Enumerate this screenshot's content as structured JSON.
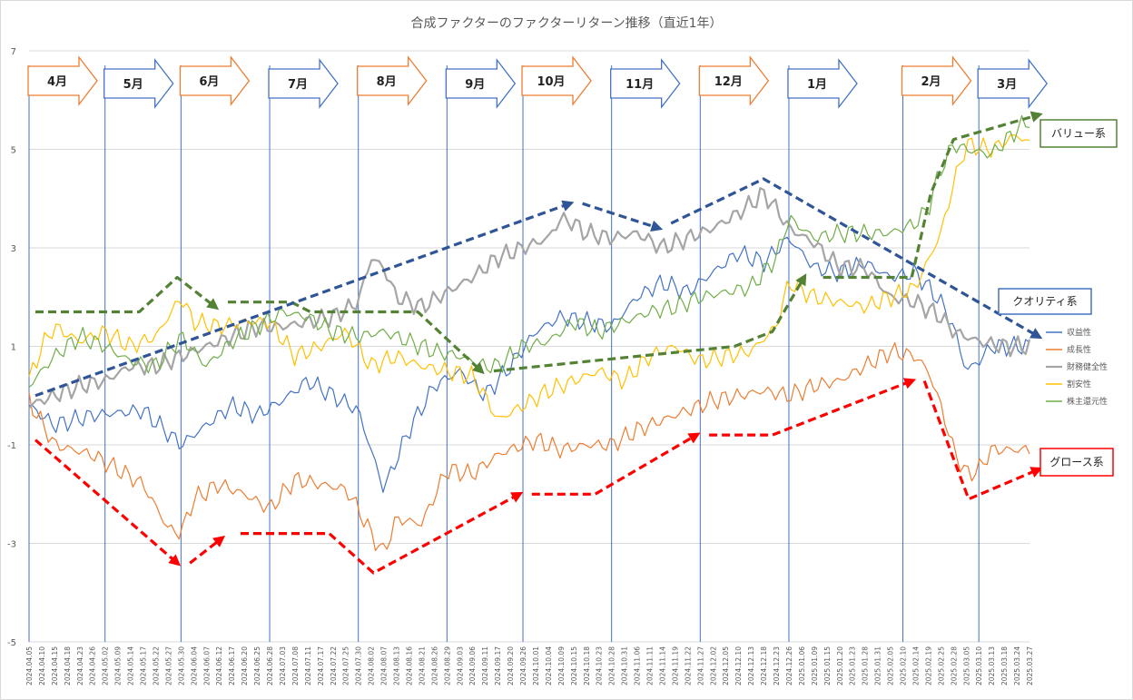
{
  "chart_data": {
    "type": "line",
    "title": "合成ファクターのファクターリターン推移（直近1年）",
    "ylim": [
      -5,
      7
    ],
    "yticks": [
      -5,
      -3,
      -1,
      1,
      3,
      5,
      7
    ],
    "xlabel": "",
    "ylabel": "",
    "grid": true,
    "legend_position": "right",
    "x_tick_labels": [
      "2024.04.05",
      "2024.04.10",
      "2024.04.15",
      "2024.04.18",
      "2024.04.23",
      "2024.04.26",
      "2024.05.02",
      "2024.05.09",
      "2024.05.14",
      "2024.05.17",
      "2024.05.22",
      "2024.05.27",
      "2024.05.30",
      "2024.06.04",
      "2024.06.07",
      "2024.06.12",
      "2024.06.17",
      "2024.06.20",
      "2024.06.25",
      "2024.06.28",
      "2024.07.03",
      "2024.07.08",
      "2024.07.11",
      "2024.07.17",
      "2024.07.22",
      "2024.07.25",
      "2024.07.30",
      "2024.08.02",
      "2024.08.07",
      "2024.08.13",
      "2024.08.16",
      "2024.08.21",
      "2024.08.26",
      "2024.08.29",
      "2024.09.03",
      "2024.09.06",
      "2024.09.11",
      "2024.09.17",
      "2024.09.20",
      "2024.09.26",
      "2024.10.01",
      "2024.10.04",
      "2024.10.09",
      "2024.10.15",
      "2024.10.18",
      "2024.10.23",
      "2024.10.28",
      "2024.10.31",
      "2024.11.06",
      "2024.11.11",
      "2024.11.14",
      "2024.11.19",
      "2024.11.22",
      "2024.11.27",
      "2024.12.02",
      "2024.12.05",
      "2024.12.10",
      "2024.12.13",
      "2024.12.18",
      "2024.12.23",
      "2024.12.26",
      "2025.01.06",
      "2025.01.09",
      "2025.01.15",
      "2025.01.20",
      "2025.01.23",
      "2025.01.28",
      "2025.01.31",
      "2025.02.05",
      "2025.02.10",
      "2025.02.14",
      "2025.02.19",
      "2025.02.25",
      "2025.02.28",
      "2025.03.05",
      "2025.03.10",
      "2025.03.13",
      "2025.03.18",
      "2025.03.24",
      "2025.03.27"
    ],
    "months": [
      "4月",
      "5月",
      "6月",
      "7月",
      "8月",
      "9月",
      "10月",
      "11月",
      "12月",
      "1月",
      "2月",
      "3月"
    ],
    "series": [
      {
        "name": "収益性",
        "color": "#4472c4",
        "width": 1.2,
        "key": [
          [
            0,
            -0.2
          ],
          [
            2,
            -0.6
          ],
          [
            5,
            -0.4
          ],
          [
            9,
            -0.3
          ],
          [
            12,
            -1.0
          ],
          [
            14,
            -0.6
          ],
          [
            16,
            -0.2
          ],
          [
            18,
            -0.4
          ],
          [
            20,
            -0.1
          ],
          [
            22,
            0.3
          ],
          [
            24,
            0.0
          ],
          [
            26,
            -0.3
          ],
          [
            28,
            -1.9
          ],
          [
            30,
            -0.7
          ],
          [
            32,
            0.2
          ],
          [
            34,
            0.5
          ],
          [
            36,
            0.0
          ],
          [
            38,
            0.6
          ],
          [
            40,
            1.3
          ],
          [
            42,
            1.6
          ],
          [
            44,
            1.5
          ],
          [
            46,
            1.4
          ],
          [
            48,
            2.0
          ],
          [
            50,
            2.3
          ],
          [
            52,
            2.1
          ],
          [
            54,
            2.5
          ],
          [
            56,
            2.9
          ],
          [
            58,
            2.7
          ],
          [
            60,
            3.2
          ],
          [
            62,
            2.6
          ],
          [
            64,
            2.5
          ],
          [
            66,
            2.7
          ],
          [
            68,
            2.4
          ],
          [
            70,
            2.5
          ],
          [
            72,
            1.9
          ],
          [
            73,
            1.4
          ],
          [
            74,
            0.5
          ],
          [
            75,
            0.7
          ],
          [
            76,
            1.0
          ],
          [
            78,
            1.0
          ],
          [
            79,
            1.0
          ]
        ]
      },
      {
        "name": "成長性",
        "color": "#ed7d31",
        "width": 1.2,
        "key": [
          [
            0,
            -0.1
          ],
          [
            2,
            -1.0
          ],
          [
            5,
            -1.2
          ],
          [
            9,
            -1.8
          ],
          [
            11,
            -2.7
          ],
          [
            12,
            -2.8
          ],
          [
            13,
            -2.1
          ],
          [
            15,
            -1.8
          ],
          [
            17,
            -2.0
          ],
          [
            19,
            -2.3
          ],
          [
            21,
            -1.7
          ],
          [
            23,
            -1.8
          ],
          [
            25,
            -1.9
          ],
          [
            26,
            -2.3
          ],
          [
            27,
            -2.8
          ],
          [
            28,
            -3.2
          ],
          [
            29,
            -2.5
          ],
          [
            31,
            -2.6
          ],
          [
            33,
            -1.5
          ],
          [
            35,
            -1.6
          ],
          [
            37,
            -1.2
          ],
          [
            40,
            -0.9
          ],
          [
            42,
            -1.1
          ],
          [
            44,
            -1.0
          ],
          [
            46,
            -1.0
          ],
          [
            48,
            -0.7
          ],
          [
            50,
            -0.5
          ],
          [
            52,
            -0.3
          ],
          [
            54,
            -0.1
          ],
          [
            56,
            0.0
          ],
          [
            58,
            0.1
          ],
          [
            60,
            0.0
          ],
          [
            62,
            0.2
          ],
          [
            64,
            0.3
          ],
          [
            66,
            0.6
          ],
          [
            68,
            0.9
          ],
          [
            70,
            0.8
          ],
          [
            71,
            0.5
          ],
          [
            72,
            -0.2
          ],
          [
            73,
            -1.1
          ],
          [
            74,
            -1.6
          ],
          [
            75,
            -1.5
          ],
          [
            76,
            -1.1
          ],
          [
            78,
            -1.1
          ],
          [
            79,
            -1.1
          ]
        ]
      },
      {
        "name": "財務健全性",
        "color": "#a5a5a5",
        "width": 2.2,
        "key": [
          [
            0,
            -0.2
          ],
          [
            2,
            0.0
          ],
          [
            4,
            0.2
          ],
          [
            6,
            0.3
          ],
          [
            8,
            0.6
          ],
          [
            10,
            0.6
          ],
          [
            12,
            0.8
          ],
          [
            14,
            1.0
          ],
          [
            16,
            1.2
          ],
          [
            18,
            1.4
          ],
          [
            20,
            1.4
          ],
          [
            22,
            1.5
          ],
          [
            24,
            1.6
          ],
          [
            26,
            1.9
          ],
          [
            27,
            2.8
          ],
          [
            28,
            2.6
          ],
          [
            29,
            2.0
          ],
          [
            31,
            1.8
          ],
          [
            33,
            2.1
          ],
          [
            35,
            2.4
          ],
          [
            37,
            2.8
          ],
          [
            39,
            3.0
          ],
          [
            41,
            3.2
          ],
          [
            42,
            3.6
          ],
          [
            43,
            3.5
          ],
          [
            44,
            3.3
          ],
          [
            46,
            3.2
          ],
          [
            48,
            3.3
          ],
          [
            50,
            3.0
          ],
          [
            52,
            3.2
          ],
          [
            54,
            3.4
          ],
          [
            56,
            3.7
          ],
          [
            58,
            4.1
          ],
          [
            59,
            3.8
          ],
          [
            60,
            3.4
          ],
          [
            62,
            3.1
          ],
          [
            64,
            2.6
          ],
          [
            66,
            2.6
          ],
          [
            68,
            2.0
          ],
          [
            70,
            1.9
          ],
          [
            72,
            1.6
          ],
          [
            73,
            1.3
          ],
          [
            75,
            1.1
          ],
          [
            77,
            1.0
          ],
          [
            79,
            1.0
          ]
        ]
      },
      {
        "name": "割安性",
        "color": "#ffc000",
        "width": 1.2,
        "key": [
          [
            0,
            0.3
          ],
          [
            1,
            1.0
          ],
          [
            2,
            1.4
          ],
          [
            4,
            1.1
          ],
          [
            6,
            1.3
          ],
          [
            8,
            1.0
          ],
          [
            10,
            1.2
          ],
          [
            12,
            2.0
          ],
          [
            13,
            1.5
          ],
          [
            15,
            1.4
          ],
          [
            17,
            1.5
          ],
          [
            19,
            1.5
          ],
          [
            21,
            0.8
          ],
          [
            23,
            1.0
          ],
          [
            25,
            1.3
          ],
          [
            27,
            0.6
          ],
          [
            29,
            0.8
          ],
          [
            31,
            0.6
          ],
          [
            33,
            0.5
          ],
          [
            35,
            0.4
          ],
          [
            36,
            0.0
          ],
          [
            37,
            -0.5
          ],
          [
            39,
            -0.2
          ],
          [
            41,
            0.1
          ],
          [
            43,
            0.3
          ],
          [
            45,
            0.5
          ],
          [
            47,
            0.3
          ],
          [
            49,
            0.8
          ],
          [
            51,
            1.0
          ],
          [
            53,
            0.7
          ],
          [
            55,
            0.8
          ],
          [
            57,
            0.9
          ],
          [
            59,
            1.4
          ],
          [
            60,
            2.3
          ],
          [
            62,
            2.0
          ],
          [
            64,
            1.9
          ],
          [
            66,
            1.8
          ],
          [
            68,
            2.0
          ],
          [
            70,
            2.2
          ],
          [
            72,
            3.3
          ],
          [
            73,
            4.3
          ],
          [
            74,
            5.1
          ],
          [
            76,
            5.0
          ],
          [
            78,
            5.3
          ],
          [
            79,
            5.1
          ]
        ]
      },
      {
        "name": "株主還元性",
        "color": "#70ad47",
        "width": 1.2,
        "key": [
          [
            0,
            0.2
          ],
          [
            2,
            0.8
          ],
          [
            4,
            1.2
          ],
          [
            6,
            1.0
          ],
          [
            8,
            0.7
          ],
          [
            10,
            0.6
          ],
          [
            12,
            1.2
          ],
          [
            14,
            0.6
          ],
          [
            16,
            1.1
          ],
          [
            18,
            1.4
          ],
          [
            20,
            1.7
          ],
          [
            22,
            1.6
          ],
          [
            24,
            1.3
          ],
          [
            26,
            1.2
          ],
          [
            28,
            1.3
          ],
          [
            30,
            1.1
          ],
          [
            32,
            0.9
          ],
          [
            34,
            0.8
          ],
          [
            36,
            0.6
          ],
          [
            37,
            0.6
          ],
          [
            39,
            1.0
          ],
          [
            41,
            1.1
          ],
          [
            43,
            1.5
          ],
          [
            45,
            1.3
          ],
          [
            47,
            1.5
          ],
          [
            49,
            1.7
          ],
          [
            51,
            1.8
          ],
          [
            53,
            2.0
          ],
          [
            55,
            2.1
          ],
          [
            57,
            2.2
          ],
          [
            59,
            2.8
          ],
          [
            60,
            3.6
          ],
          [
            62,
            3.2
          ],
          [
            64,
            3.3
          ],
          [
            66,
            3.3
          ],
          [
            68,
            3.3
          ],
          [
            70,
            3.5
          ],
          [
            71,
            3.8
          ],
          [
            72,
            4.6
          ],
          [
            73,
            5.1
          ],
          [
            74,
            5.0
          ],
          [
            76,
            4.9
          ],
          [
            78,
            5.4
          ],
          [
            79,
            5.6
          ]
        ]
      }
    ],
    "trend_arrows": [
      {
        "group": "value",
        "color": "#548235",
        "points": [
          [
            0.5,
            1.7
          ],
          [
            8.7,
            1.7
          ],
          [
            11.7,
            2.4
          ],
          [
            14.7,
            1.8
          ]
        ]
      },
      {
        "group": "value",
        "color": "#548235",
        "points": [
          [
            15.7,
            1.9
          ],
          [
            20.7,
            1.9
          ],
          [
            22.2,
            1.7
          ],
          [
            28.7,
            1.7
          ],
          [
            30.7,
            1.7
          ],
          [
            35.7,
            0.5
          ]
        ]
      },
      {
        "group": "value",
        "color": "#548235",
        "points": [
          [
            36.7,
            0.5
          ],
          [
            55.7,
            1.0
          ],
          [
            58.7,
            1.3
          ],
          [
            61.2,
            2.4
          ]
        ]
      },
      {
        "group": "value",
        "color": "#548235",
        "points": [
          [
            62.7,
            2.4
          ],
          [
            69.7,
            2.4
          ],
          [
            71.2,
            4.1
          ],
          [
            73.0,
            5.2
          ],
          [
            79.7,
            5.7
          ]
        ]
      },
      {
        "group": "quality",
        "color": "#2f5597",
        "points": [
          [
            0.5,
            0.0
          ],
          [
            42.7,
            3.9
          ]
        ]
      },
      {
        "group": "quality",
        "color": "#2f5597",
        "points": [
          [
            43.7,
            3.9
          ],
          [
            49.7,
            3.4
          ]
        ]
      },
      {
        "group": "quality",
        "color": "#2f5597",
        "points": [
          [
            50.7,
            3.5
          ],
          [
            58.0,
            4.4
          ],
          [
            79.7,
            1.2
          ]
        ]
      },
      {
        "group": "growth",
        "color": "#ff0000",
        "points": [
          [
            0.5,
            -0.9
          ],
          [
            11.7,
            -3.4
          ]
        ]
      },
      {
        "group": "growth",
        "color": "#ff0000",
        "points": [
          [
            12.7,
            -3.4
          ],
          [
            15.2,
            -2.9
          ]
        ]
      },
      {
        "group": "growth",
        "color": "#ff0000",
        "points": [
          [
            16.7,
            -2.8
          ],
          [
            23.7,
            -2.8
          ],
          [
            27.2,
            -3.6
          ],
          [
            38.7,
            -2.0
          ]
        ]
      },
      {
        "group": "growth",
        "color": "#ff0000",
        "points": [
          [
            39.7,
            -2.0
          ],
          [
            44.7,
            -2.0
          ],
          [
            52.7,
            -0.8
          ]
        ]
      },
      {
        "group": "growth",
        "color": "#ff0000",
        "points": [
          [
            53.7,
            -0.8
          ],
          [
            58.7,
            -0.8
          ],
          [
            69.7,
            0.3
          ]
        ]
      },
      {
        "group": "growth",
        "color": "#ff0000",
        "points": [
          [
            70.7,
            0.3
          ],
          [
            74.2,
            -2.1
          ],
          [
            79.7,
            -1.5
          ]
        ]
      }
    ],
    "callouts": [
      {
        "label": "バリュー系",
        "color": "#548235"
      },
      {
        "label": "クオリティ系",
        "color": "#4472c4"
      },
      {
        "label": "グロース系",
        "color": "#ff0000"
      }
    ]
  }
}
